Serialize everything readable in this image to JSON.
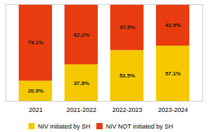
{
  "chart_data": {
    "type": "bar",
    "stacked": true,
    "categories": [
      "2021",
      "2021-2022",
      "2022-2023",
      "2023-2024"
    ],
    "series": [
      {
        "name": "NIV initiated by SH",
        "color": "#F5C800",
        "values": [
          20.9,
          37.8,
          52.5,
          57.1
        ],
        "value_labels": [
          "20.9%",
          "37.8%",
          "52.5%",
          "57.1%"
        ]
      },
      {
        "name": "NIV NOT initiated by SH",
        "color": "#E83B0F",
        "values": [
          79.1,
          62.2,
          47.5,
          42.9
        ],
        "value_labels": [
          "79.1%",
          "62.2%",
          "47.5%",
          "42.9%"
        ]
      }
    ],
    "ylim": [
      0,
      100
    ],
    "tick_labels": "x",
    "data_labels": true,
    "legend": "bottom"
  }
}
